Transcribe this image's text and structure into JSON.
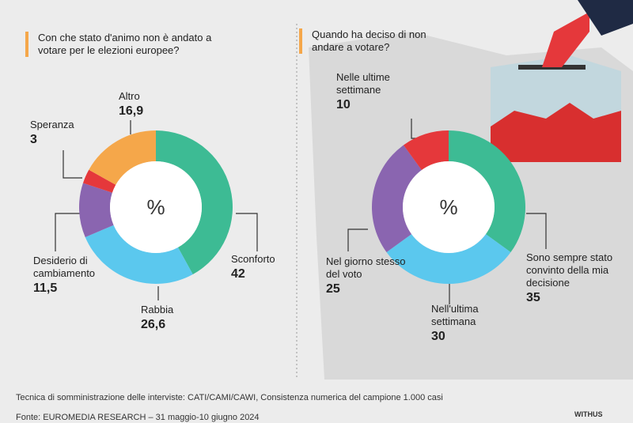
{
  "chart_data": [
    {
      "type": "donut",
      "title": "Con che stato d'animo non è andato a votare per le elezioni europee?",
      "center_label": "%",
      "categories": [
        "Sconforto",
        "Rabbia",
        "Desiderio di cambiamento",
        "Speranza",
        "Altro"
      ],
      "values": [
        42,
        26.6,
        11.5,
        3,
        16.9
      ],
      "value_labels": [
        "42",
        "26,6",
        "11,5",
        "3",
        "16,9"
      ],
      "colors": [
        "#3dbb94",
        "#5bc8ee",
        "#8a65b0",
        "#e5383b",
        "#f5a74a"
      ]
    },
    {
      "type": "donut",
      "title": "Quando ha deciso di non andare a votare?",
      "center_label": "%",
      "categories": [
        "Sono sempre stato convinto della mia decisione",
        "Nell'ultima settimana",
        "Nel giorno stesso del voto",
        "Nelle ultime settimane"
      ],
      "values": [
        35,
        30,
        25,
        10
      ],
      "colors": [
        "#3dbb94",
        "#5bc8ee",
        "#8a65b0",
        "#e5383b"
      ]
    }
  ],
  "footer": {
    "note": "Tecnica di somministrazione delle interviste: CATI/CAMI/CAWI, Consistenza numerica del campione 1.000 casi",
    "source": "Fonte: EUROMEDIA RESEARCH – 31 maggio-10 giugno 2024",
    "brand": "WITHUS"
  }
}
